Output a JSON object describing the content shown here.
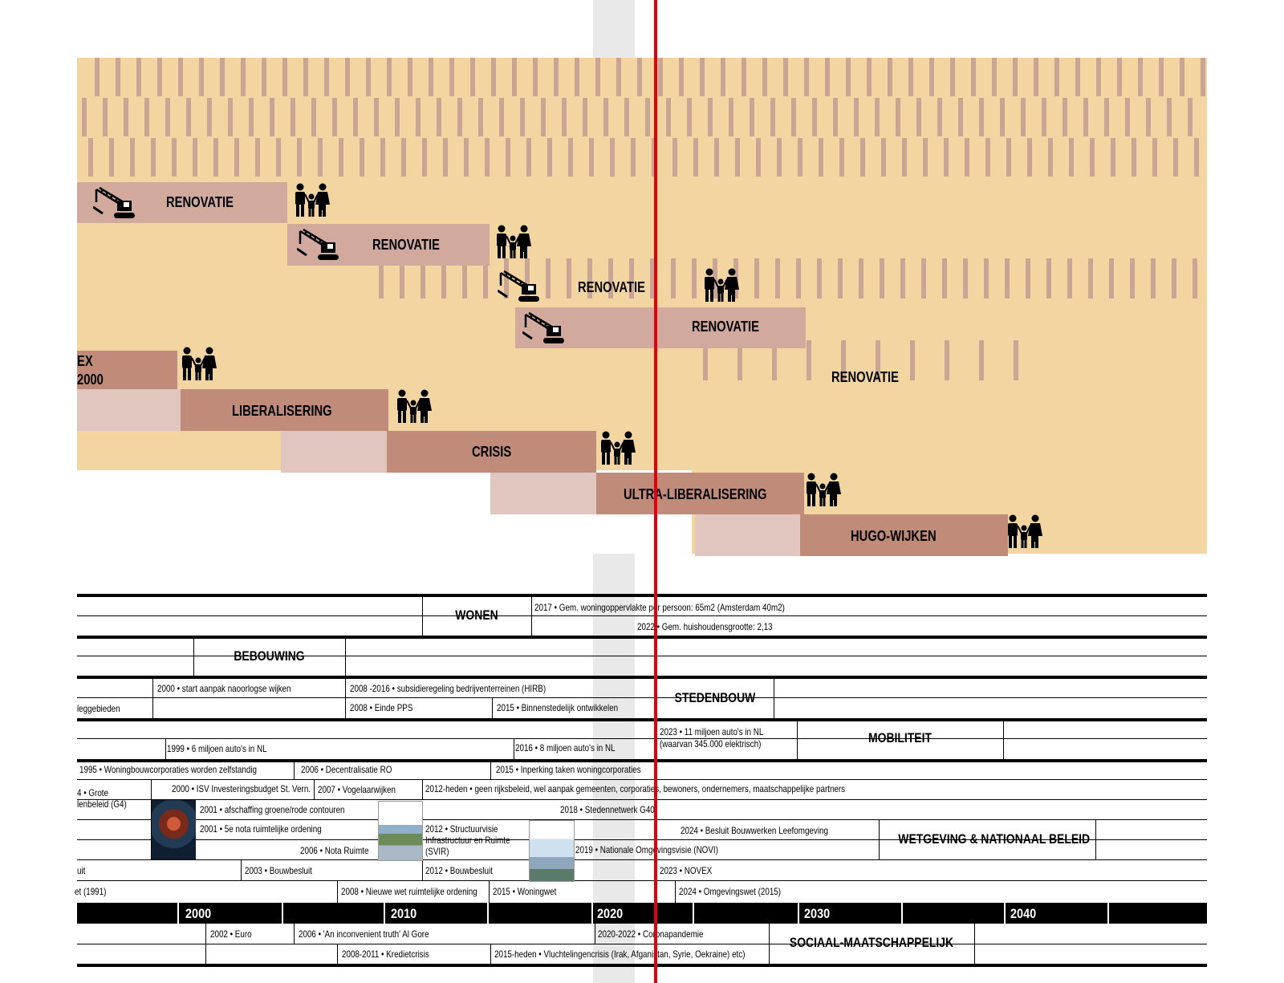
{
  "colors": {
    "background_area": "#f3d5a1",
    "renovatie": "#d1a99d",
    "policy_phase": "#c08c79",
    "pre_phase": "#e0c6be",
    "now_line": "#e3000b",
    "stripe": "#c9a596"
  },
  "phases": {
    "renovatie_1": "RENOVATIE",
    "renovatie_2": "RENOVATIE",
    "renovatie_3": "RENOVATIE",
    "renovatie_4": "RENOVATIE",
    "renovatie_5": "RENOVATIE",
    "vinex_line1": "EX",
    "vinex_line2": "2000",
    "liberalisering": "LIBERALISERING",
    "crisis": "CRISIS",
    "ultra": "ULTRA-LIBERALISERING",
    "hugo": "HUGO-WIJKEN"
  },
  "icons": {
    "crane": "crane-icon",
    "family": "family-icon"
  },
  "categories": {
    "wonen": "WONEN",
    "bebouwing": "BEBOUWING",
    "stedenbouw": "STEDENBOUW",
    "mobiliteit": "MOBILITEIT",
    "wetgeving": "WETGEVING & NATIONAAL BELEID",
    "sociaal": "SOCIAAL-MAATSCHAPPELIJK"
  },
  "events": {
    "wonen_2017": "2017 • Gem. woningoppervlakte per persoon: 65m2 (Amsterdam 40m2)",
    "wonen_2022": "2022 • Gem. huishoudensgrootte: 2,13",
    "sb_2000": "2000 • start aanpak naoorlogse wijken",
    "sb_2008_hirb": "2008 -2016 • subsidieregeling bedrijventerreinen (HIRB)",
    "sb_leggebieden": "leggebieden",
    "sb_2008_pps": "2008 • Einde PPS",
    "sb_2015": "2015 • Binnenstedelijk ontwikkelen",
    "mob_2023a": "2023 • 11 miljoen auto's in NL",
    "mob_2023b": "(waarvan 345.000 elektrisch)",
    "mob_1999": "1999 • 6 miljoen auto's in NL",
    "mob_2016": "2016 • 8 miljoen auto's in NL",
    "w_1995": "1995 • Woningbouwcorporaties worden zelfstandig",
    "w_2006_ro": "2006 • Decentralisatie RO",
    "w_2015_inp": "2015 • Inperking taken woningcorporaties",
    "w_g4a": "4 • Grote",
    "w_g4b": "lenbeleid  (G4)",
    "w_2000_isv": "2000 • ISV Investeringsbudget St. Vern.",
    "w_2007": "2007 • Vogelaarwijken",
    "w_2012_heden": "2012-heden • geen rijksbeleid, wel aanpak gemeenten, corporaties, bewoners, ondernemers, maatschappelijke partners",
    "w_2001_groen": "2001 • afschaffing groene/rode contouren",
    "w_2018": "2018 • Stedennetwerk G40",
    "w_2001_5e": "2001 • 5e nota ruimtelijke ordening",
    "w_2012_svir_a": "2012 • Structuurvisie",
    "w_2012_svir_b": "Infrastructuur en Ruimte",
    "w_2012_svir_c": "(SVIR)",
    "w_2024_bbl": "2024 • Besluit Bouwwerken Leefomgeving",
    "w_2006_nota": "2006 • Nota Ruimte",
    "w_2019": "2019 • Nationale Omgevingsvisie (NOVI)",
    "w_uit": "uit",
    "w_2003": "2003 • Bouwbesluit",
    "w_2012_bb": "2012 • Bouwbesluit",
    "w_2023": "2023 • NOVEX",
    "w_1991": "et (1991)",
    "w_2008_wro": "2008 • Nieuwe wet ruimtelijke ordening",
    "w_2015_ww": "2015 • Woningwet",
    "w_2024_ow": "2024 • Omgevingswet (2015)",
    "s_2002": "2002 • Euro",
    "s_2006": "2006 • 'An inconvenient truth' Al Gore",
    "s_2020": "2020-2022 • Coronapandemie",
    "s_2008": "2008-2011 • Kredietcrisis",
    "s_2015": "2015-heden • Vluchtelingencrisis (Irak, Afganistan, Syrie, Oekraine) etc)"
  },
  "axis": {
    "y2000": "2000",
    "y2010": "2010",
    "y2020": "2020",
    "y2030": "2030",
    "y2040": "2040"
  }
}
